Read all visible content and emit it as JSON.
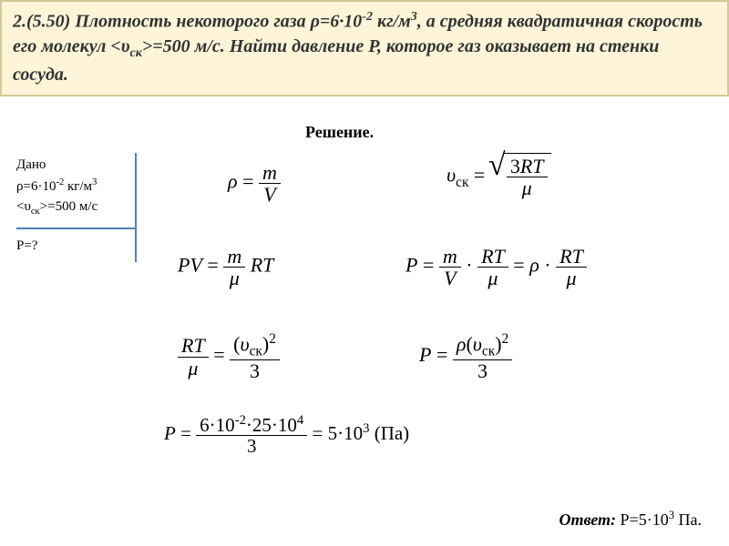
{
  "problem": {
    "number": "2.(5.50)",
    "text_parts": {
      "p1": "Плотность некоторого газа ρ=6·10",
      "exp1": "-2",
      "p2": " кг/м",
      "exp2": "3",
      "p3": ", а средняя квадратичная скорость его молекул <υ",
      "sub1": "ск",
      "p4": ">=500 м/с. Найти давление P, которое газ оказывает на стенки сосуда."
    }
  },
  "solution_label": "Решение.",
  "given": {
    "title": "Дано",
    "line1a": "ρ=6·10",
    "line1exp": "-2",
    "line1b": " кг/м",
    "line1exp2": "3",
    "line2a": "<υ",
    "line2sub": "ск",
    "line2b": ">=500 м/с"
  },
  "find": "P=?",
  "symbols": {
    "rho": "ρ",
    "m": "m",
    "V": "V",
    "v": "υ",
    "sk": "ск",
    "three": "3",
    "R": "R",
    "T": "T",
    "mu": "μ",
    "P": "P",
    "two": "2",
    "eq": "=",
    "dot": "·",
    "PV": "PV"
  },
  "calc": {
    "num_a": "6·10",
    "num_exp1": "-2",
    "num_b": "·25·10",
    "num_exp2": "4",
    "den": "3",
    "result_a": "5·10",
    "result_exp": "3",
    "unit": "(Па)"
  },
  "answer": {
    "label": "Ответ:",
    "val_a": " P=5·10",
    "val_exp": "3",
    "val_b": " Па."
  },
  "style": {
    "box_bg": "#fef5d9",
    "box_border": "#d4c896",
    "divider_color": "#5082b5",
    "text_color": "#333333",
    "title_fontsize": 20,
    "body_fontsize": 15,
    "formula_fontsize": 22
  }
}
